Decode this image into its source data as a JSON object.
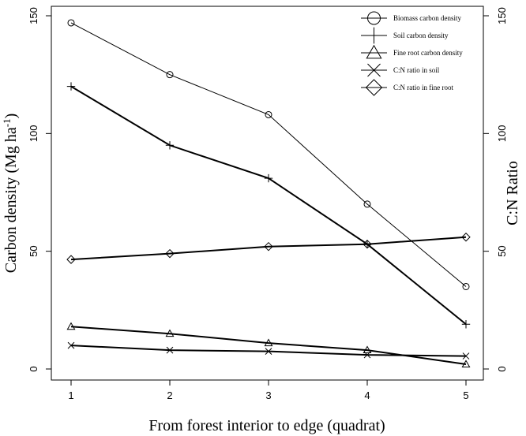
{
  "chart_data": {
    "type": "line",
    "x": [
      1,
      2,
      3,
      4,
      5
    ],
    "xlabel": "From forest interior to edge (quadrat)",
    "ylabel_left": "Carbon density (Mg ha",
    "ylabel_left_sup": "-1",
    "ylabel_left_close": ")",
    "ylabel_right": "C:N Ratio",
    "xlim": [
      1,
      5
    ],
    "ylim_left": [
      0,
      150
    ],
    "ylim_right": [
      0,
      150
    ],
    "x_ticks": [
      "1",
      "2",
      "3",
      "4",
      "5"
    ],
    "y_ticks_left": [
      "0",
      "50",
      "100",
      "150"
    ],
    "y_ticks_right": [
      "0",
      "50",
      "100",
      "150"
    ],
    "legend_position": "top-right",
    "series": [
      {
        "name": "Biomass carbon density",
        "axis": "left",
        "marker": "circle",
        "weight": "thin",
        "values": [
          147,
          125,
          108,
          70,
          35
        ]
      },
      {
        "name": "Soil carbon density",
        "axis": "left",
        "marker": "plus",
        "weight": "thick",
        "values": [
          120,
          95,
          81,
          53,
          19
        ]
      },
      {
        "name": "Fine root carbon density",
        "axis": "left",
        "marker": "triangle",
        "weight": "thick",
        "values": [
          18,
          15,
          11,
          8,
          2
        ]
      },
      {
        "name": "C:N ratio in soil",
        "axis": "right",
        "marker": "cross",
        "weight": "thick",
        "values": [
          10,
          8,
          7.5,
          6,
          5.5
        ]
      },
      {
        "name": "C:N ratio in fine root",
        "axis": "right",
        "marker": "diamond",
        "weight": "thick",
        "values": [
          46.5,
          49,
          52,
          53,
          56
        ]
      }
    ]
  }
}
